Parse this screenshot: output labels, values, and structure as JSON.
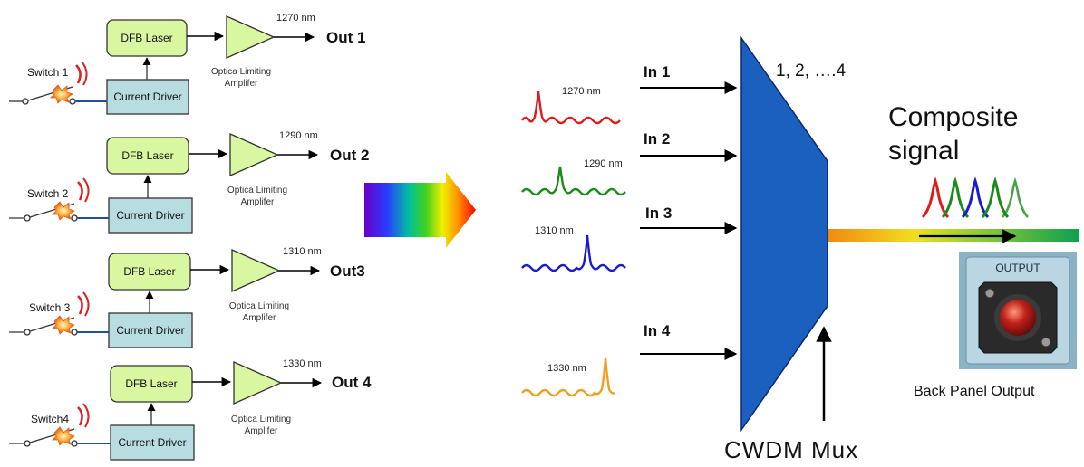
{
  "channels": [
    {
      "switch": "Switch 1",
      "laser": "DFB Laser",
      "driver": "Current Driver",
      "wavelength": "1270 nm",
      "amp_line1": "Optica Limiting",
      "amp_line2": "Amplifer",
      "out": "Out 1",
      "input": "In 1",
      "spectrum_label": "1270 nm",
      "color": "#e01a1a"
    },
    {
      "switch": "Switch 2",
      "laser": "DFB Laser",
      "driver": "Current Driver",
      "wavelength": "1290 nm",
      "amp_line1": "Optica Limiting",
      "amp_line2": "Amplifer",
      "out": "Out 2",
      "input": "In 2",
      "spectrum_label": "1290 nm",
      "color": "#1a8a1a"
    },
    {
      "switch": "Switch 3",
      "laser": "DFB Laser",
      "driver": "Current Driver",
      "wavelength": "1310 nm",
      "amp_line1": "Optica Limiting",
      "amp_line2": "Amplifer",
      "out": "Out3",
      "input": "In 3",
      "spectrum_label": "1310 nm",
      "color": "#1a1ad0"
    },
    {
      "switch": "Switch4",
      "laser": "DFB Laser",
      "driver": "Current Driver",
      "wavelength": "1330 nm",
      "amp_line1": "Optica Limiting",
      "amp_line2": "Amplifer",
      "out": "Out 4",
      "input": "In 4",
      "spectrum_label": "1330 nm",
      "color": "#f0a020"
    }
  ],
  "mux": {
    "channels_label": "1, 2, ….4",
    "label": "CWDM Mux",
    "color": "#1b5fbf"
  },
  "composite": {
    "line1": "Composite",
    "line2": "signal"
  },
  "panel": {
    "plate_label": "OUTPUT",
    "caption": "Back Panel Output"
  }
}
